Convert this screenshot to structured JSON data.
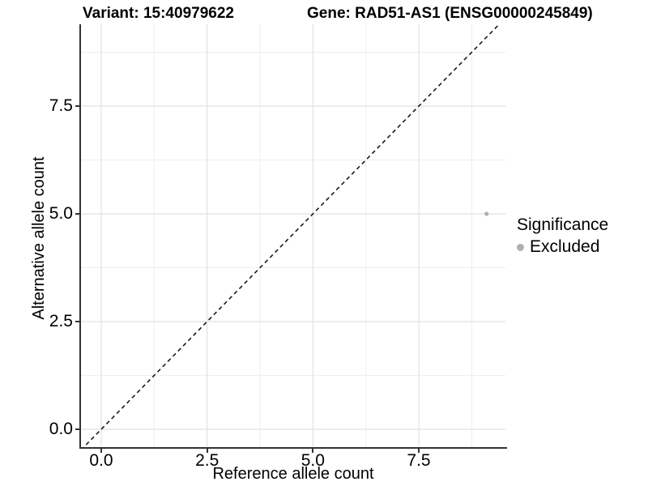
{
  "header": {
    "variant_title": "Variant: 15:40979622",
    "gene_title": "Gene: RAD51-AS1 (ENSG00000245849)"
  },
  "chart_data": {
    "type": "scatter",
    "title": "Variant: 15:40979622   Gene: RAD51-AS1 (ENSG00000245849)",
    "xlabel": "Reference allele count",
    "ylabel": "Alternative allele count",
    "xlim": [
      -0.48,
      9.55
    ],
    "ylim": [
      -0.42,
      9.4
    ],
    "x_ticks": {
      "values": [
        0,
        2.5,
        5,
        7.5
      ],
      "labels": [
        "0.0",
        "2.5",
        "5.0",
        "7.5"
      ]
    },
    "y_ticks": {
      "values": [
        0,
        2.5,
        5,
        7.5
      ],
      "labels": [
        "0.0",
        "2.5",
        "5.0",
        "7.5"
      ]
    },
    "minor_ticks": [
      1.25,
      3.75,
      6.25,
      8.75
    ],
    "grid": {
      "show": true,
      "major_color": "#e5e5e5",
      "minor_color": "#efefef"
    },
    "identity_line": {
      "slope": 1,
      "intercept": 0,
      "style": "dashed",
      "color": "#1a1a1a"
    },
    "series": [
      {
        "name": "Excluded",
        "color": "#b0b0b0",
        "points": [
          {
            "x": 9.1,
            "y": 5.0
          }
        ]
      }
    ],
    "legend": {
      "title": "Significance",
      "position": "right",
      "entries": [
        {
          "label": "Excluded",
          "color": "#b0b0b0",
          "marker": "circle"
        }
      ]
    }
  },
  "colors": {
    "background": "#ffffff",
    "axis_line": "#333333",
    "point": "#b0b0b0",
    "text": "#000000"
  }
}
